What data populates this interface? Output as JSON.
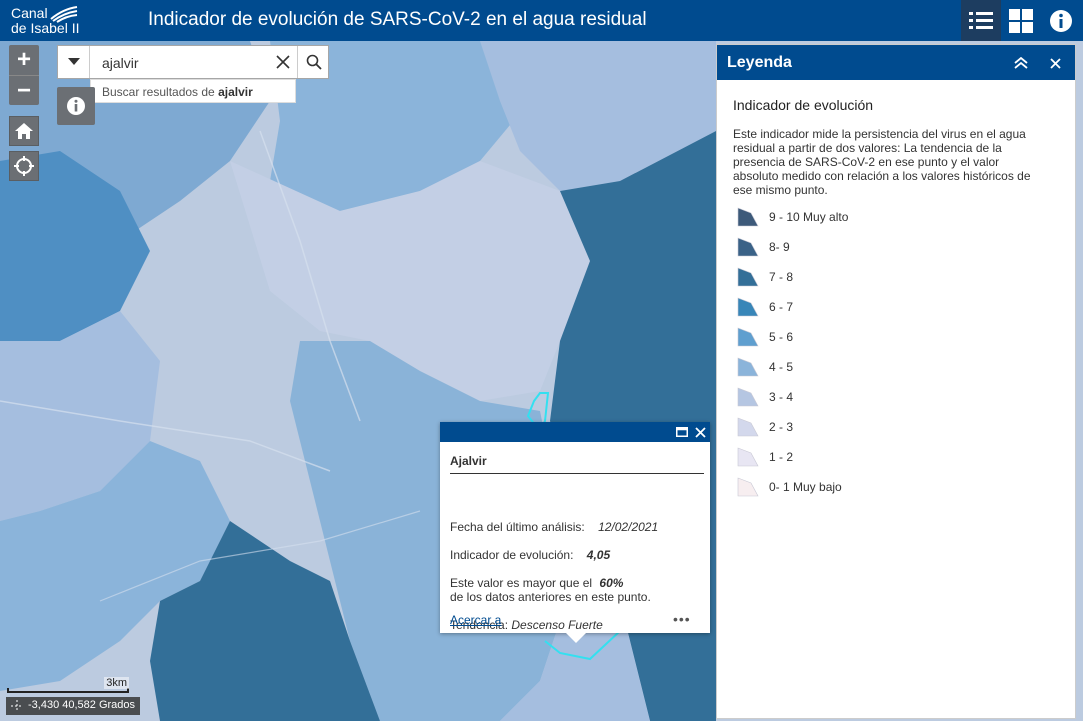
{
  "header": {
    "logo_line1": "Canal",
    "logo_line2": "de Isabel II",
    "title": "Indicador de evolución de SARS-CoV-2 en el agua residual",
    "buttons": [
      "legend-icon",
      "basemap-gallery-icon",
      "about-icon"
    ]
  },
  "map": {
    "zoom_in": "+",
    "zoom_out": "−",
    "search": {
      "value": "ajalvir",
      "suggestion_prefix": "Buscar resultados de",
      "suggestion_term": "ajalvir"
    },
    "scalebar_label": "3km",
    "coordinates": "-3,430 40,582 Grados"
  },
  "popup": {
    "title": "Ajalvir",
    "date_label": "Fecha del último análisis:",
    "date_value": "12/02/2021",
    "indicator_label": "Indicador de evolución:",
    "indicator_value": "4,05",
    "compare_prefix": "Este valor es mayor que el",
    "compare_value": "60%",
    "compare_suffix": "de los datos anteriores en este punto.",
    "trend_label": "Tendencia:",
    "trend_value": "Descenso Fuerte",
    "zoom_link": "Acercar a",
    "more": "•••"
  },
  "legend": {
    "title": "Leyenda",
    "layer_title": "Indicador de evolución",
    "description": "Este indicador mide la persistencia del virus en el agua residual a partir de dos valores: La tendencia de la presencia de SARS-CoV-2 en ese punto y el valor absoluto medido con relación a los valores históricos de ese mismo punto.",
    "items": [
      {
        "label": "9 - 10 Muy alto",
        "color": "#3d5a7a"
      },
      {
        "label": "8- 9",
        "color": "#3a6287"
      },
      {
        "label": "7 - 8",
        "color": "#336f98"
      },
      {
        "label": "6 - 7",
        "color": "#3886b8"
      },
      {
        "label": "5 - 6",
        "color": "#5f9fcf"
      },
      {
        "label": "4 - 5",
        "color": "#8bb4da"
      },
      {
        "label": "3 - 4",
        "color": "#b5c6e2"
      },
      {
        "label": "2 - 3",
        "color": "#d3d8ec"
      },
      {
        "label": "1 - 2",
        "color": "#e8e6f3"
      },
      {
        "label": "0- 1 Muy bajo",
        "color": "#f7eef0"
      }
    ]
  }
}
